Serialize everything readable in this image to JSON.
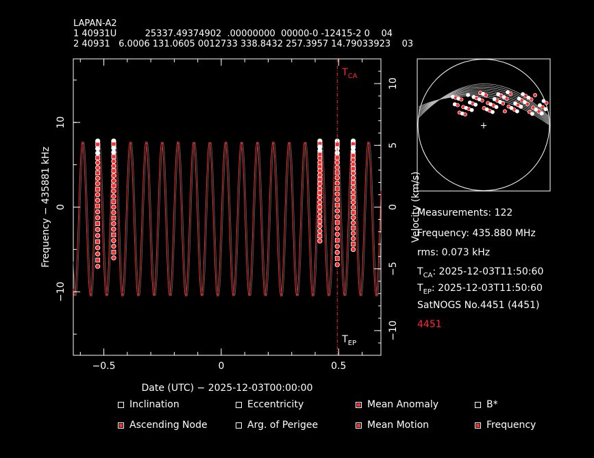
{
  "header": {
    "name": "LAPAN-A2",
    "tle_line1": "1 40931U          25337.49374902  .00000000  00000-0 -12415-2 0    04",
    "tle_line2": "2 40931   6.0006 131.0605 0012733 338.8432 257.3957 14.79033923    03"
  },
  "info": {
    "measurements": "Measurements: 122",
    "frequency": "Frequency: 435.880 MHz",
    "rms": "rms: 0.073 kHz",
    "tca_label": "T",
    "tca_sub": "CA",
    "tca_value": ": 2025-12-03T11:50:60",
    "tep_label": "T",
    "tep_sub": "EP",
    "tep_value": ": 2025-12-03T11:50:60",
    "station": "SatNOGS No.4451 (4451)",
    "site_id": "4451"
  },
  "legend": [
    {
      "label": "Inclination",
      "checked": false
    },
    {
      "label": "Eccentricity",
      "checked": false
    },
    {
      "label": "Mean Anomaly",
      "checked": true
    },
    {
      "label": "B*",
      "checked": false
    },
    {
      "label": "Ascending Node",
      "checked": true
    },
    {
      "label": "Arg. of Perigee",
      "checked": false
    },
    {
      "label": "Mean Motion",
      "checked": true
    },
    {
      "label": "Frequency",
      "checked": true
    }
  ],
  "colors": {
    "model": "#ff2a2a",
    "data": "#ffffff",
    "axis": "#ffffff",
    "marker": "#ff2a2a"
  },
  "chart_data": {
    "type": "scatter",
    "xlabel": "Date (UTC) − 2025-12-03T00:00:00",
    "ylabel": "Frequency − 435881 kHz",
    "ylabel_right": "Velocity (km/s)",
    "xlim": [
      -0.63,
      0.68
    ],
    "ylim": [
      -17.5,
      17.5
    ],
    "ylim_right": [
      -12,
      12
    ],
    "x_ticks": [
      -0.5,
      0,
      0.5
    ],
    "x_tick_labels": [
      "−0.5",
      "0",
      "0.5"
    ],
    "y_ticks": [
      -10,
      0,
      10
    ],
    "y_tick_labels": [
      "−10",
      "0",
      "10"
    ],
    "y_ticks_right": [
      -10,
      -5,
      0,
      5,
      10
    ],
    "y_tick_labels_right": [
      "−10",
      "−5",
      "0",
      "5",
      "10"
    ],
    "tca_x": 0.494,
    "tca_label": "T",
    "tca_sub": "CA",
    "tep_label": "T",
    "tep_sub": "EP",
    "model": {
      "period_days": 0.0676,
      "amplitude_khz": 9.1,
      "offset_khz": -1.4
    },
    "passes": [
      {
        "x": -0.526,
        "f_min": -7.0,
        "f_max": 7.8
      },
      {
        "x": -0.458,
        "f_min": -6.0,
        "f_max": 7.8
      },
      {
        "x": 0.42,
        "f_min": -4.0,
        "f_max": 7.8
      },
      {
        "x": 0.494,
        "f_min": -6.8,
        "f_max": 7.8
      },
      {
        "x": 0.562,
        "f_min": -5.0,
        "f_max": 7.8
      }
    ]
  },
  "skyplot": {
    "center_marker": "+"
  }
}
